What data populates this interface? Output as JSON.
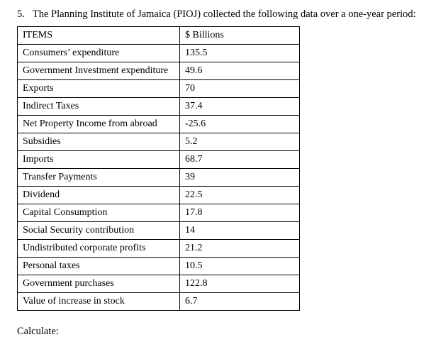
{
  "question": {
    "number": "5.",
    "text": "The Planning Institute of Jamaica (PIOJ) collected the following data over a one-year period:"
  },
  "table": {
    "headers": [
      "ITEMS",
      "$ Billions"
    ],
    "rows": [
      {
        "item": "Consumers’ expenditure",
        "value": "135.5"
      },
      {
        "item": "Government Investment expenditure",
        "value": "49.6"
      },
      {
        "item": "Exports",
        "value": "70"
      },
      {
        "item": "Indirect Taxes",
        "value": "37.4"
      },
      {
        "item": "Net Property Income from abroad",
        "value": "-25.6"
      },
      {
        "item": "Subsidies",
        "value": "5.2"
      },
      {
        "item": "Imports",
        "value": "68.7"
      },
      {
        "item": "Transfer Payments",
        "value": "39"
      },
      {
        "item": "Dividend",
        "value": "22.5"
      },
      {
        "item": "Capital Consumption",
        "value": "17.8"
      },
      {
        "item": "Social Security contribution",
        "value": "14"
      },
      {
        "item": "Undistributed corporate profits",
        "value": "21.2"
      },
      {
        "item": "Personal taxes",
        "value": "10.5"
      },
      {
        "item": "Government purchases",
        "value": "122.8"
      },
      {
        "item": "Value of increase in stock",
        "value": "6.7"
      }
    ]
  },
  "footer": {
    "calculate_label": "Calculate:"
  }
}
